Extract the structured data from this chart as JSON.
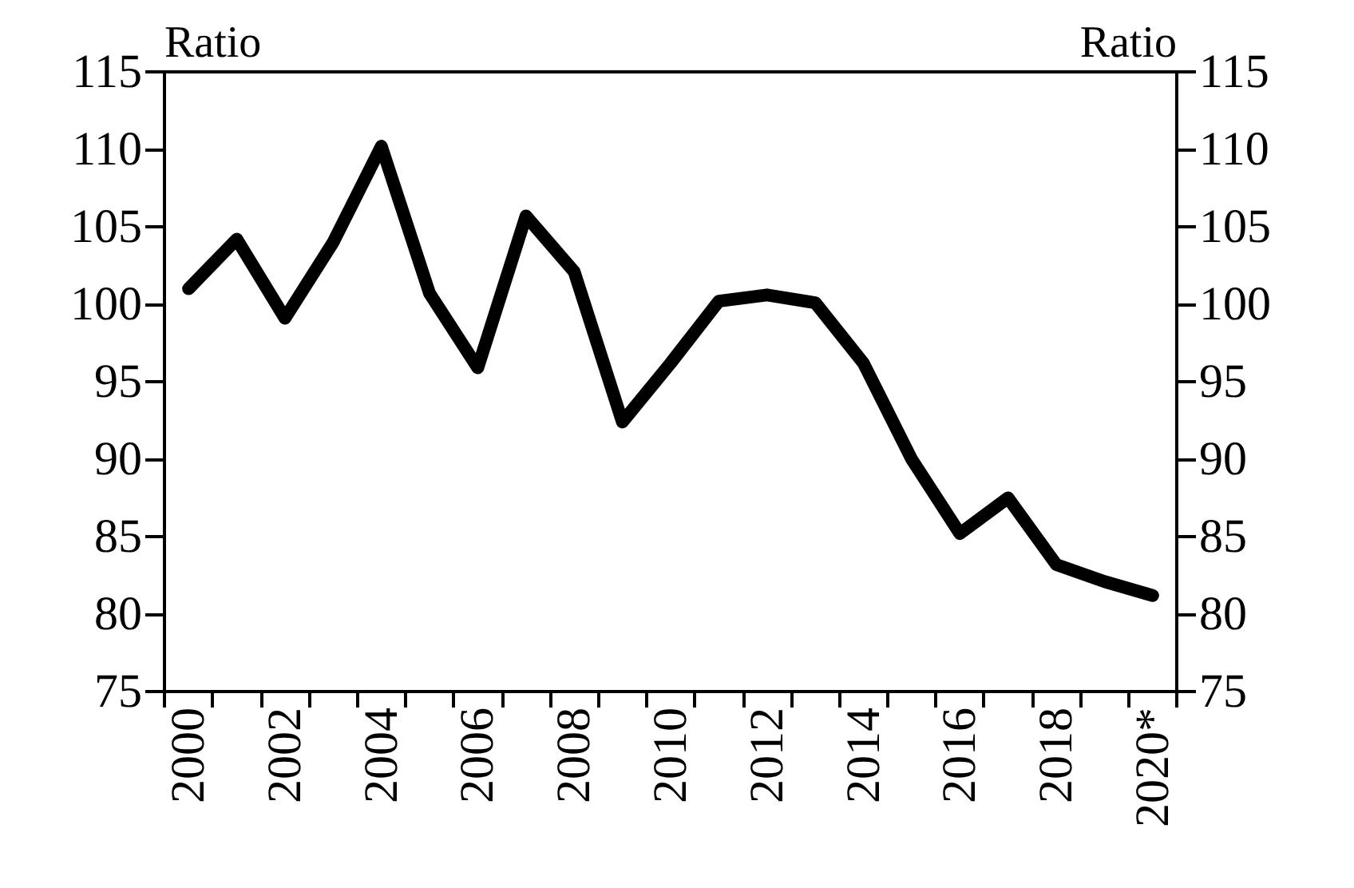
{
  "chart_data": {
    "type": "line",
    "ylabel": "Ratio",
    "y2label": "Ratio",
    "categories": [
      "2000",
      null,
      "2002",
      null,
      "2004",
      null,
      "2006",
      null,
      "2008",
      null,
      "2010",
      null,
      "2012",
      null,
      "2014",
      null,
      "2016",
      null,
      "2018",
      null,
      "2020*"
    ],
    "series": [
      {
        "color": "#000000",
        "values": [
          101.0,
          104.2,
          99.1,
          104.0,
          110.2,
          100.7,
          95.9,
          105.7,
          102.1,
          92.4,
          96.2,
          100.2,
          100.6,
          100.1,
          96.2,
          90.0,
          85.2,
          87.5,
          83.2,
          82.1,
          81.2
        ]
      }
    ],
    "ylim": [
      75,
      115
    ],
    "yticks": [
      75,
      80,
      85,
      90,
      95,
      100,
      105,
      110,
      115
    ],
    "y2lim": [
      75,
      115
    ],
    "y2ticks": [
      75,
      80,
      85,
      90,
      95,
      100,
      105,
      110,
      115
    ],
    "grid": false,
    "line_style": "solid"
  }
}
